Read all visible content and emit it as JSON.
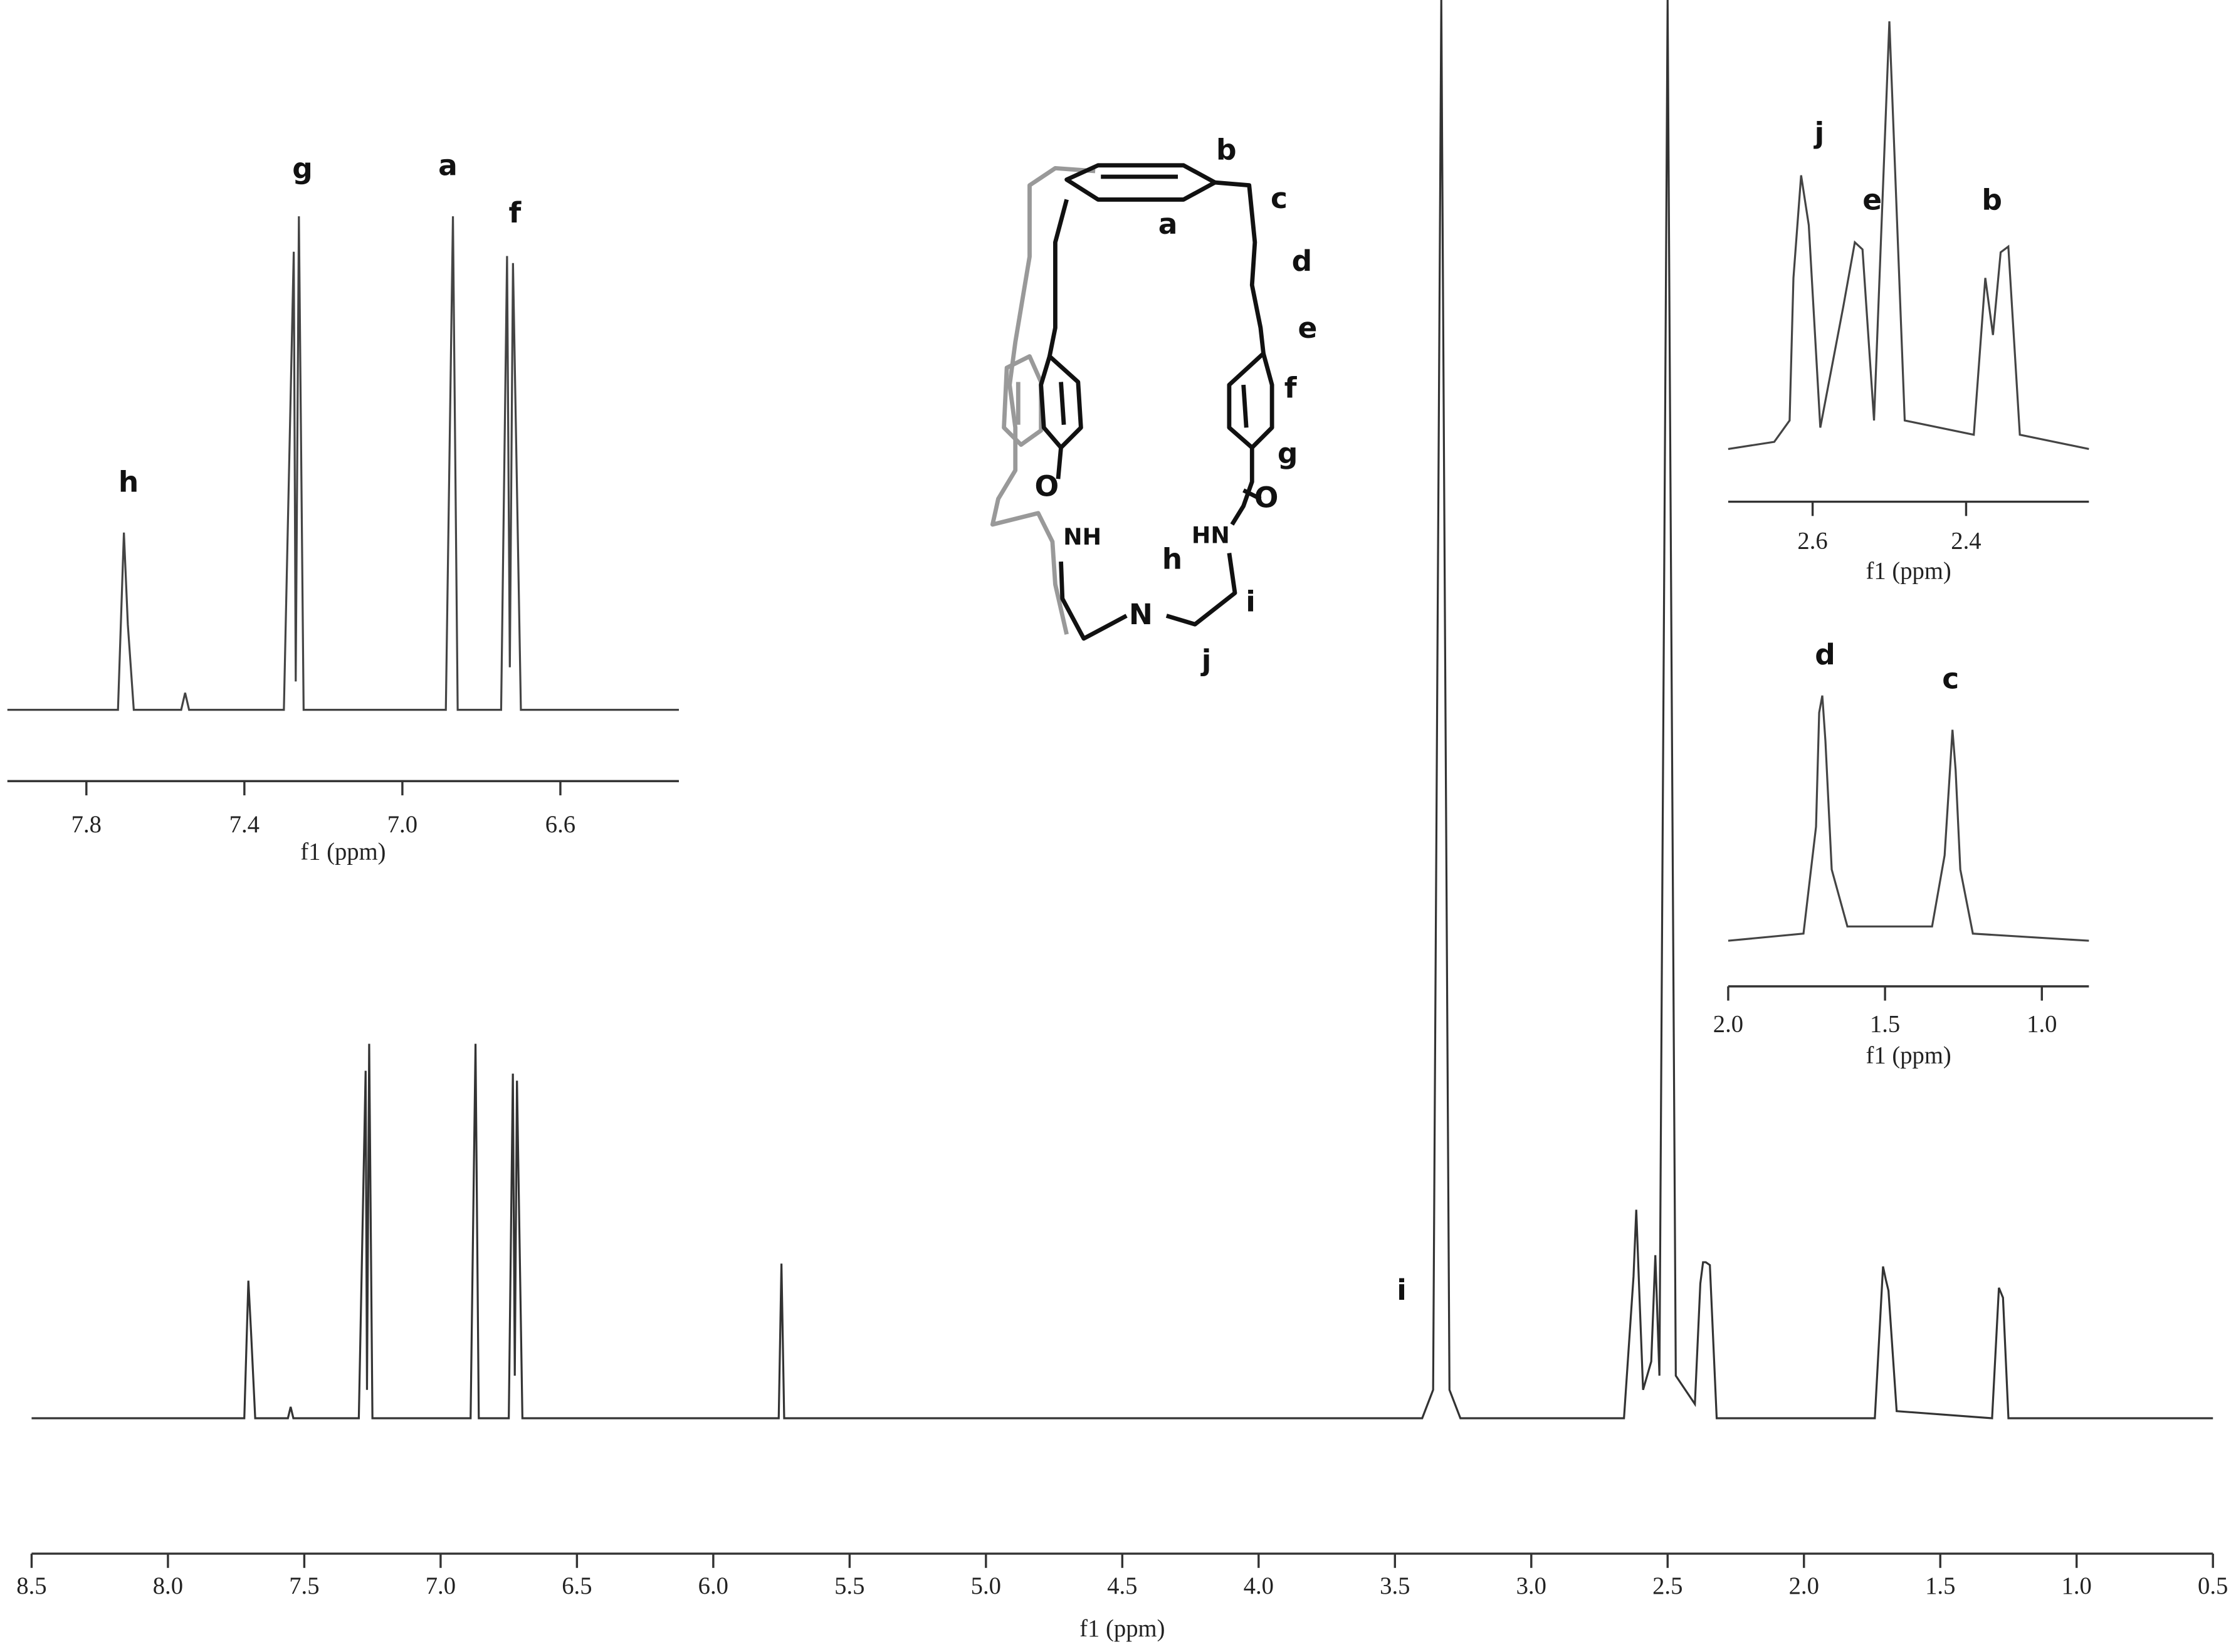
{
  "chart_data": [
    {
      "type": "line",
      "xlabel": "f1 (ppm)",
      "color": "#333333",
      "xlim": [
        8.5,
        0.5
      ],
      "ylim": [
        0,
        100
      ],
      "xticks": [
        8.5,
        {
          "value": 8,
          "label": "8.0"
        },
        7.5,
        {
          "value": 7,
          "label": "7.0"
        },
        6.5,
        {
          "value": 6,
          "label": "6.0"
        },
        5.5,
        {
          "value": 5,
          "label": "5.0"
        },
        4.5,
        {
          "value": 4,
          "label": "4.0"
        },
        3.5,
        {
          "value": 3,
          "label": "3.0"
        },
        2.5,
        {
          "value": 2,
          "label": "2.0"
        },
        1.5,
        {
          "value": 1,
          "label": "1.0"
        },
        0.5
      ],
      "x": [
        8.5,
        7.72,
        7.705,
        7.695,
        7.68,
        7.56,
        7.55,
        7.54,
        7.3,
        7.275,
        7.27,
        7.262,
        7.25,
        6.89,
        6.872,
        6.86,
        6.75,
        6.735,
        6.728,
        6.72,
        6.7,
        5.76,
        5.75,
        5.74,
        3.4,
        3.36,
        3.33,
        3.3,
        3.26,
        2.66,
        2.625,
        2.615,
        2.605,
        2.59,
        2.56,
        2.545,
        2.53,
        2.5,
        2.47,
        2.4,
        2.38,
        2.37,
        2.36,
        2.345,
        2.32,
        1.74,
        1.71,
        1.7,
        1.69,
        1.66,
        1.31,
        1.285,
        1.27,
        1.25,
        0.5
      ],
      "values": [
        0,
        0,
        9.7,
        6,
        0,
        0,
        0.8,
        0,
        0,
        24.5,
        2,
        26.4,
        0,
        0,
        26.4,
        0,
        0,
        24.3,
        3,
        23.8,
        0,
        0,
        10.9,
        0,
        0,
        2,
        100,
        2,
        0,
        0,
        10,
        14.7,
        9.5,
        2,
        4,
        11.5,
        3,
        100,
        3,
        1,
        9.5,
        11,
        11,
        10.8,
        0,
        0,
        10.7,
        9.8,
        9,
        0.5,
        0,
        9.2,
        8.5,
        0,
        0
      ],
      "annotations": [
        "i"
      ]
    },
    {
      "type": "line",
      "xlabel": "f1 (ppm)",
      "color": "#444444",
      "xlim": [
        8.0,
        6.3
      ],
      "ylim": [
        0,
        40
      ],
      "xticks": [
        7.8,
        7.4,
        {
          "value": 7,
          "label": "7.0"
        },
        6.6
      ],
      "x": [
        8.0,
        7.72,
        7.705,
        7.695,
        7.68,
        7.56,
        7.55,
        7.54,
        7.3,
        7.275,
        7.27,
        7.262,
        7.25,
        6.89,
        6.872,
        6.86,
        6.75,
        6.735,
        6.728,
        6.72,
        6.7,
        6.3
      ],
      "values": [
        0,
        0,
        12.5,
        6,
        0,
        0,
        1.2,
        0,
        0,
        32.3,
        2,
        34.8,
        0,
        0,
        34.8,
        0,
        0,
        32,
        3,
        31.5,
        0,
        0
      ],
      "annotations": [
        "h",
        "g",
        "a",
        "f"
      ]
    },
    {
      "type": "line",
      "xlabel": "f1 (ppm)",
      "color": "#444444",
      "xlim": [
        2.71,
        2.24
      ],
      "ylim": [
        0,
        30
      ],
      "xticks": [
        2.6,
        2.4
      ],
      "x": [
        2.71,
        2.65,
        2.63,
        2.625,
        2.615,
        2.605,
        2.59,
        2.56,
        2.545,
        2.535,
        2.52,
        2.5,
        2.48,
        2.39,
        2.375,
        2.365,
        2.355,
        2.345,
        2.33,
        2.24
      ],
      "values": [
        0,
        0.5,
        2,
        12,
        19.2,
        15.7,
        1.5,
        10,
        14.5,
        14,
        2,
        30,
        2,
        1,
        12,
        8,
        13.8,
        14.2,
        1,
        0
      ],
      "annotations": [
        "j",
        "e",
        "b"
      ]
    },
    {
      "type": "line",
      "xlabel": "f1 (ppm)",
      "color": "#444444",
      "xlim": [
        2.0,
        0.85
      ],
      "ylim": [
        0,
        20
      ],
      "xticks": [
        {
          "value": 2,
          "label": "2.0"
        },
        1.5,
        {
          "value": 1,
          "label": "1.0"
        }
      ],
      "x": [
        2.0,
        1.76,
        1.72,
        1.71,
        1.7,
        1.69,
        1.67,
        1.62,
        1.5,
        1.35,
        1.31,
        1.29,
        1.285,
        1.275,
        1.26,
        1.22,
        0.85
      ],
      "values": [
        0,
        0.5,
        8,
        16,
        17.2,
        14,
        5,
        1,
        1,
        1,
        6,
        13,
        14.8,
        12,
        5,
        0.5,
        0
      ],
      "annotations": [
        "d",
        "c"
      ]
    }
  ],
  "structure": {
    "labels": [
      "b",
      "c",
      "a",
      "d",
      "e",
      "f",
      "g",
      "O",
      "O",
      "NH",
      "HN",
      "h",
      "i",
      "N",
      "j"
    ]
  }
}
